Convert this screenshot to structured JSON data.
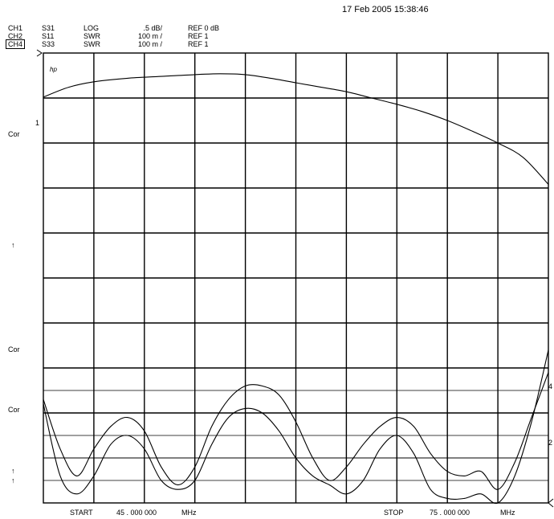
{
  "header": {
    "date": "17 Feb 2005  15:38:46",
    "channels": [
      {
        "ch": "CH1",
        "param": "S31",
        "format": "LOG",
        "scale": ".5 dB/",
        "ref": "REF 0 dB",
        "boxed": false
      },
      {
        "ch": "CH2",
        "param": "S11",
        "format": "SWR",
        "scale": "100 m /",
        "ref": "REF 1",
        "boxed": false
      },
      {
        "ch": "CH4",
        "param": "S33",
        "format": "SWR",
        "scale": "100 m /",
        "ref": "REF 1",
        "boxed": true
      }
    ]
  },
  "side_labels": {
    "hp": "hp",
    "cor1": "Cor",
    "one": "1",
    "arrow1": "↑",
    "cor2": "Cor",
    "cor3": "Cor",
    "arrow2": "↑",
    "arrow3": "↑",
    "right4": "4",
    "right2": "2"
  },
  "footer": {
    "start_label": "START",
    "start_value": "45 . 000  000",
    "start_unit": "MHz",
    "stop_label": "STOP",
    "stop_value": "75 . 000  000",
    "stop_unit": "MHz"
  },
  "chart_data": {
    "type": "line",
    "x_unit": "MHz",
    "xlim": [
      45,
      75
    ],
    "grid": true,
    "divisions": {
      "x": 10,
      "y": 10
    },
    "series": [
      {
        "name": "S31",
        "format": "LOG",
        "scale_per_div": 0.5,
        "ref_value": 0,
        "ref_division_from_top": 1,
        "x": [
          45,
          46.5,
          48,
          50,
          52,
          54,
          55.5,
          57,
          58.5,
          60,
          61.5,
          63,
          64.5,
          66,
          67.5,
          69,
          70.5,
          72,
          73.5,
          75
        ],
        "y": [
          0.01,
          0.12,
          0.18,
          0.22,
          0.24,
          0.26,
          0.27,
          0.26,
          0.22,
          0.17,
          0.12,
          0.07,
          0.0,
          -0.07,
          -0.15,
          -0.25,
          -0.37,
          -0.5,
          -0.66,
          -0.96
        ]
      },
      {
        "name": "S11",
        "format": "SWR",
        "scale_per_div": 0.1,
        "ref_value": 1,
        "ref_division_from_top": 10,
        "x": [
          45,
          46,
          47,
          48,
          49,
          50,
          51,
          52,
          53,
          54,
          55,
          56,
          57,
          58,
          59,
          60,
          61,
          62,
          63,
          64,
          65,
          66,
          67,
          68,
          69,
          70,
          71,
          72,
          73,
          74,
          75
        ],
        "y": [
          1.23,
          1.12,
          1.06,
          1.12,
          1.17,
          1.19,
          1.16,
          1.08,
          1.04,
          1.08,
          1.17,
          1.23,
          1.26,
          1.26,
          1.24,
          1.18,
          1.1,
          1.05,
          1.08,
          1.13,
          1.17,
          1.19,
          1.17,
          1.11,
          1.07,
          1.06,
          1.07,
          1.03,
          1.09,
          1.19,
          1.29
        ]
      },
      {
        "name": "S33",
        "format": "SWR",
        "scale_per_div": 0.1,
        "ref_value": 1,
        "ref_division_from_top": 10,
        "x": [
          45,
          46,
          47,
          48,
          49,
          50,
          51,
          52,
          53,
          54,
          55,
          56,
          57,
          58,
          59,
          60,
          61,
          62,
          63,
          64,
          65,
          66,
          67,
          68,
          69,
          70,
          71,
          72,
          73,
          74,
          75
        ],
        "y": [
          1.22,
          1.06,
          1.02,
          1.06,
          1.13,
          1.15,
          1.12,
          1.05,
          1.03,
          1.05,
          1.13,
          1.19,
          1.21,
          1.2,
          1.16,
          1.1,
          1.06,
          1.04,
          1.02,
          1.05,
          1.12,
          1.15,
          1.11,
          1.03,
          1.01,
          1.01,
          1.02,
          1.0,
          1.06,
          1.18,
          1.34
        ]
      }
    ]
  }
}
